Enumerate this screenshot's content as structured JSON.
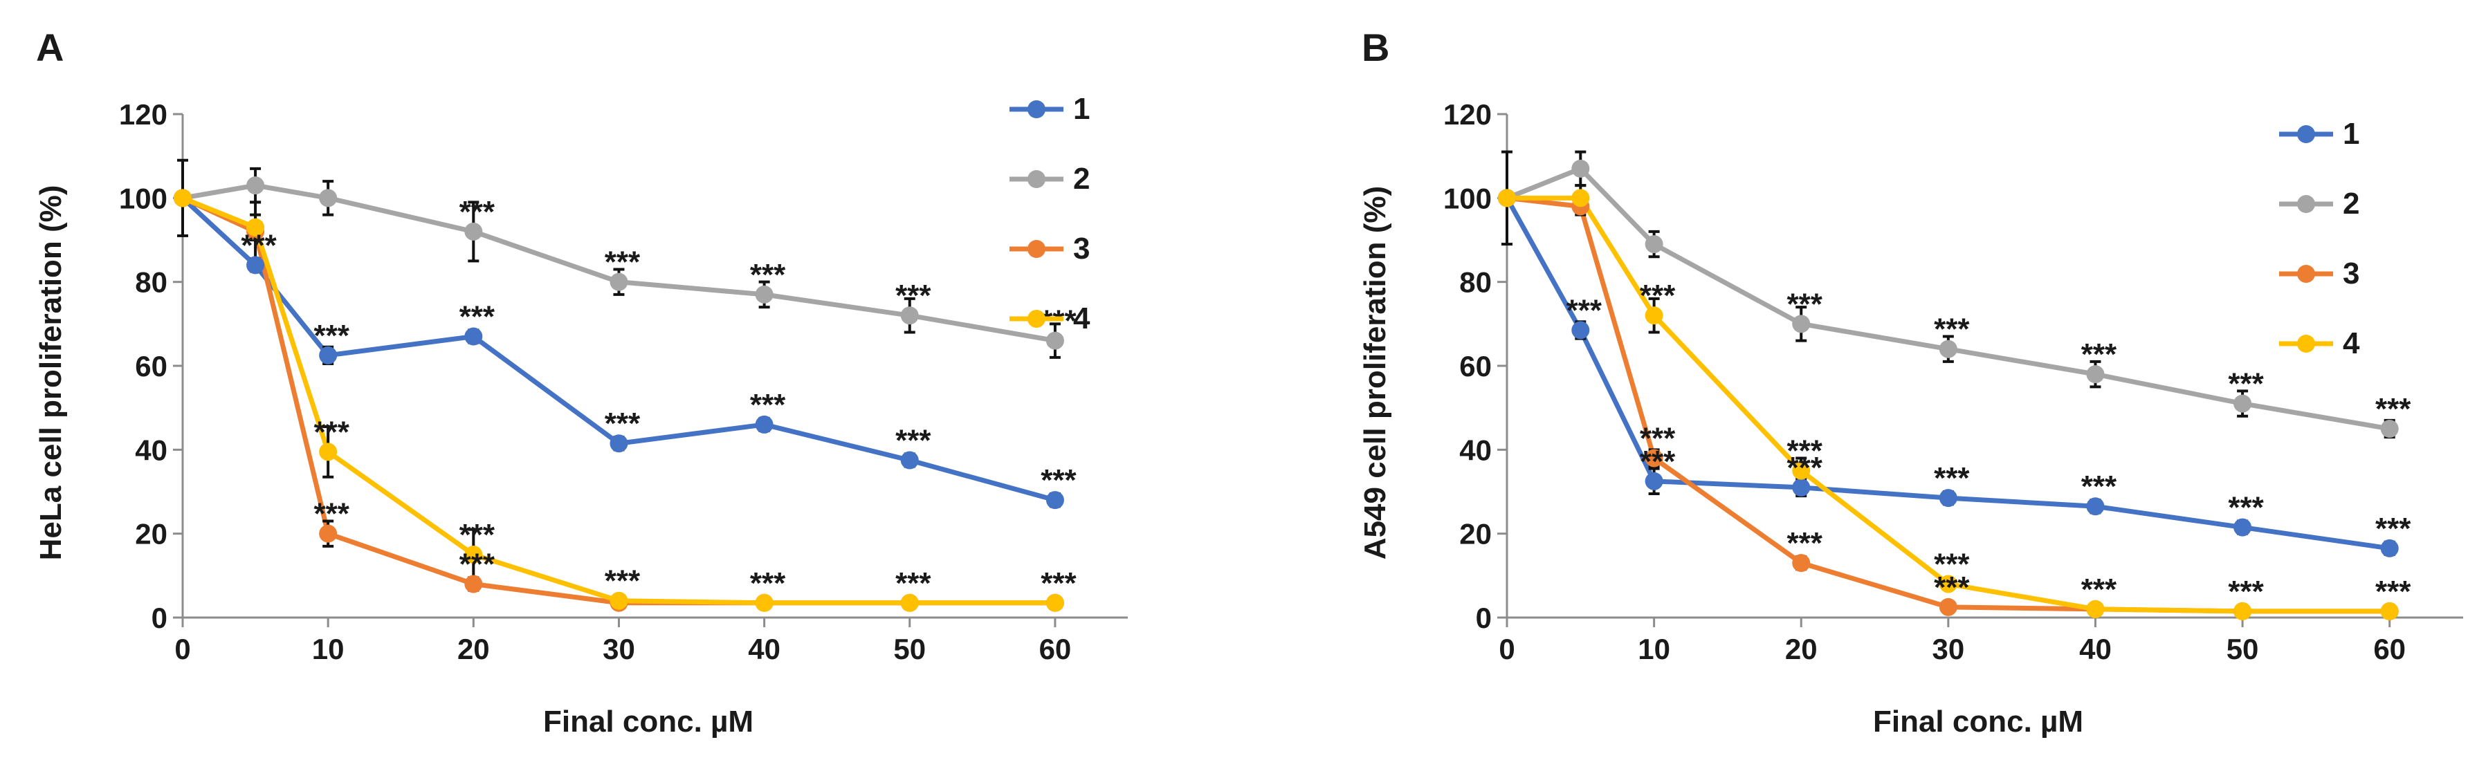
{
  "chart_data": [
    {
      "type": "line",
      "panel": "A",
      "xlabel": "Final conc. µM",
      "ylabel": "HeLa cell proliferation (%)",
      "x": [
        0,
        5,
        10,
        20,
        30,
        40,
        50,
        60
      ],
      "xticks": [
        0,
        10,
        20,
        30,
        40,
        50,
        60
      ],
      "xlim": [
        0,
        65
      ],
      "ylim": [
        0,
        120
      ],
      "yticks": [
        0,
        20,
        40,
        60,
        80,
        100,
        120
      ],
      "legend_position": "top-right",
      "significance_label": "***",
      "series": [
        {
          "name": "1",
          "color": "#4472C4",
          "values": [
            100,
            84,
            62.5,
            67,
            41.5,
            46,
            37.5,
            28
          ],
          "errors": [
            0,
            1.5,
            2,
            1.5,
            1.5,
            1.5,
            1.5,
            1.5
          ],
          "stars": [
            false,
            true,
            true,
            true,
            true,
            true,
            true,
            true
          ]
        },
        {
          "name": "2",
          "color": "#A5A5A5",
          "values": [
            100,
            103,
            100,
            92,
            80,
            77,
            72,
            66
          ],
          "errors": [
            9,
            4,
            4,
            7,
            3,
            3,
            4,
            4
          ],
          "stars": [
            false,
            false,
            false,
            true,
            true,
            true,
            true,
            true
          ]
        },
        {
          "name": "3",
          "color": "#ED7D31",
          "values": [
            100,
            92,
            20,
            8,
            3.5,
            3.5,
            3.5,
            3.5
          ],
          "errors": [
            0,
            7,
            3,
            1.5,
            0.5,
            0.5,
            0.5,
            0.5
          ],
          "stars": [
            false,
            false,
            true,
            true,
            false,
            false,
            false,
            false
          ]
        },
        {
          "name": "4",
          "color": "#FFC000",
          "values": [
            100,
            93,
            39.5,
            15,
            4,
            3.5,
            3.5,
            3.5
          ],
          "errors": [
            0,
            3,
            6,
            6,
            0.5,
            0.5,
            0.5,
            0.5
          ],
          "stars": [
            false,
            false,
            true,
            true,
            true,
            true,
            true,
            true
          ]
        }
      ]
    },
    {
      "type": "line",
      "panel": "B",
      "xlabel": "Final conc. µM",
      "ylabel": "A549 cell proliferation (%)",
      "x": [
        0,
        5,
        10,
        20,
        30,
        40,
        50,
        60
      ],
      "xticks": [
        0,
        10,
        20,
        30,
        40,
        50,
        60
      ],
      "xlim": [
        0,
        65
      ],
      "ylim": [
        0,
        120
      ],
      "yticks": [
        0,
        20,
        40,
        60,
        80,
        100,
        120
      ],
      "legend_position": "top-right",
      "significance_label": "***",
      "series": [
        {
          "name": "1",
          "color": "#4472C4",
          "values": [
            100,
            68.5,
            32.5,
            31,
            28.5,
            26.5,
            21.5,
            16.5
          ],
          "errors": [
            0,
            2,
            3,
            2,
            1.5,
            1.5,
            1.5,
            1.5
          ],
          "stars": [
            false,
            true,
            true,
            true,
            true,
            true,
            true,
            true
          ]
        },
        {
          "name": "2",
          "color": "#A5A5A5",
          "values": [
            100,
            107,
            89,
            70,
            64,
            58,
            51,
            45
          ],
          "errors": [
            11,
            4,
            3,
            4,
            3,
            3,
            3,
            2
          ],
          "stars": [
            false,
            false,
            false,
            true,
            true,
            true,
            true,
            true
          ]
        },
        {
          "name": "3",
          "color": "#ED7D31",
          "values": [
            100,
            98,
            38,
            13,
            2.5,
            2,
            1.5,
            1.5
          ],
          "errors": [
            0,
            2,
            2,
            1.5,
            0.5,
            0.5,
            0.5,
            0.5
          ],
          "stars": [
            false,
            false,
            true,
            true,
            true,
            false,
            false,
            false
          ]
        },
        {
          "name": "4",
          "color": "#FFC000",
          "values": [
            100,
            100,
            72,
            35,
            8,
            2,
            1.5,
            1.5
          ],
          "errors": [
            0,
            3,
            4,
            3,
            1,
            0.5,
            0.5,
            0.5
          ],
          "stars": [
            false,
            false,
            true,
            true,
            true,
            true,
            true,
            true
          ]
        }
      ]
    }
  ]
}
